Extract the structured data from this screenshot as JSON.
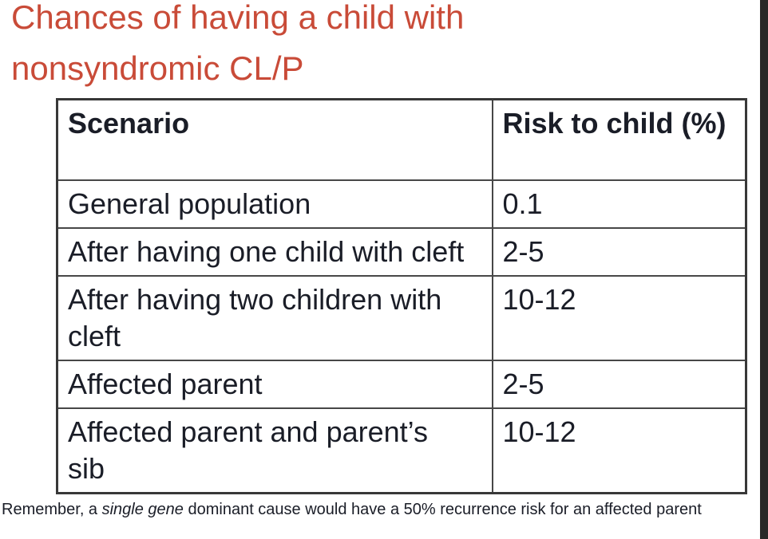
{
  "title": {
    "lines": [
      "Chances of having a child with",
      "nonsyndromic CL/P"
    ],
    "full": "Chances of having a child with nonsyndromic CL/P"
  },
  "table": {
    "headers": [
      "Scenario",
      "Risk to child (%)"
    ],
    "rows": [
      {
        "scenario": "General population",
        "risk": "0.1"
      },
      {
        "scenario": "After having one child with cleft",
        "risk": "2-5"
      },
      {
        "scenario": "After having two children with cleft",
        "risk": "10-12"
      },
      {
        "scenario": "Affected parent",
        "risk": "2-5"
      },
      {
        "scenario": "Affected parent and parent’s sib",
        "risk": "10-12"
      }
    ]
  },
  "footnote": {
    "prefix": "Remember, a ",
    "emphasis": "single gene",
    "suffix": " dominant cause would have a 50% recurrence risk for an affected parent"
  },
  "colors": {
    "title": "#C94B38",
    "text": "#1A1D27",
    "table_border": "#474747",
    "right_bar": "#282828",
    "background": "#FFFFFF"
  }
}
